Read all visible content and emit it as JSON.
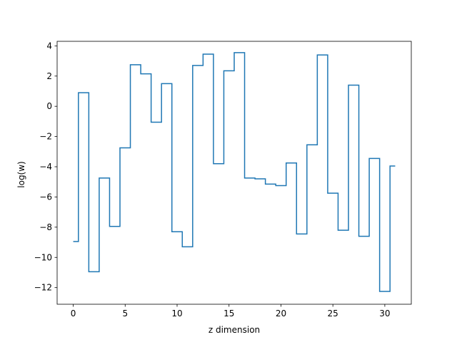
{
  "chart_data": {
    "type": "line",
    "step": "mid",
    "xlabel": "z dimension",
    "ylabel": "log(w)",
    "xlim": [
      -1.55,
      32.55
    ],
    "ylim": [
      -13.1,
      4.3
    ],
    "xticks": [
      0,
      5,
      10,
      15,
      20,
      25,
      30
    ],
    "yticks": [
      -12,
      -10,
      -8,
      -6,
      -4,
      -2,
      0,
      2,
      4
    ],
    "grid": false,
    "series": [
      {
        "color": "#1f77b4",
        "x": [
          0,
          1,
          2,
          3,
          4,
          5,
          6,
          7,
          8,
          9,
          10,
          11,
          12,
          13,
          14,
          15,
          16,
          17,
          18,
          19,
          20,
          21,
          22,
          23,
          24,
          25,
          26,
          27,
          28,
          29,
          30,
          31
        ],
        "values": [
          -8.95,
          0.9,
          -10.95,
          -4.75,
          -7.95,
          -2.75,
          2.75,
          2.15,
          -1.05,
          1.5,
          -8.3,
          -9.3,
          2.7,
          3.45,
          -3.8,
          2.35,
          3.55,
          -4.75,
          -4.8,
          -5.15,
          -5.25,
          -3.75,
          -8.45,
          -2.55,
          3.4,
          -5.75,
          -8.2,
          1.4,
          -8.6,
          -3.45,
          -12.25,
          -3.95
        ]
      }
    ]
  }
}
